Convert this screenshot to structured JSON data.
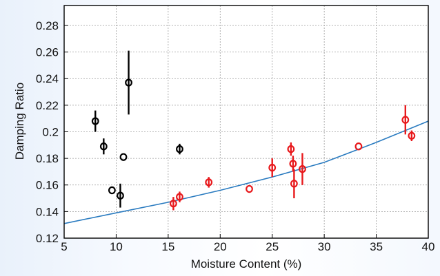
{
  "chart_data": {
    "type": "scatter",
    "title": "",
    "xlabel": "Moisture Content (%)",
    "ylabel": "Damping Ratio",
    "xlim": [
      5,
      40
    ],
    "ylim": [
      0.12,
      0.295
    ],
    "x_ticks": [
      5,
      10,
      15,
      20,
      25,
      30,
      35,
      40
    ],
    "x_tick_labels": [
      "5",
      "10",
      "15",
      "20",
      "25",
      "30",
      "35",
      "40"
    ],
    "y_ticks": [
      0.12,
      0.14,
      0.16,
      0.18,
      0.2,
      0.22,
      0.24,
      0.26,
      0.28
    ],
    "y_tick_labels": [
      "0.12",
      "0.14",
      "0.16",
      "0.18",
      "0.2",
      "0.22",
      "0.24",
      "0.26",
      "0.28"
    ],
    "grid": true,
    "legend": "none",
    "series": [
      {
        "color": "#000000",
        "marker": "open-circle",
        "points": [
          {
            "x": 8.0,
            "y": 0.208,
            "err": 0.008
          },
          {
            "x": 8.8,
            "y": 0.189,
            "err": 0.006
          },
          {
            "x": 9.6,
            "y": 0.156,
            "err": 0.0
          },
          {
            "x": 10.4,
            "y": 0.152,
            "err": 0.009
          },
          {
            "x": 10.7,
            "y": 0.181,
            "err": 0.0
          },
          {
            "x": 11.2,
            "y": 0.237,
            "err": 0.024
          },
          {
            "x": 16.1,
            "y": 0.187,
            "err": 0.004
          }
        ]
      },
      {
        "color": "#e8191c",
        "marker": "open-circle",
        "points": [
          {
            "x": 15.5,
            "y": 0.146,
            "err": 0.005
          },
          {
            "x": 16.1,
            "y": 0.151,
            "err": 0.004
          },
          {
            "x": 18.9,
            "y": 0.162,
            "err": 0.004
          },
          {
            "x": 22.8,
            "y": 0.157,
            "err": 0.0
          },
          {
            "x": 25.0,
            "y": 0.173,
            "err": 0.007
          },
          {
            "x": 26.8,
            "y": 0.187,
            "err": 0.005
          },
          {
            "x": 27.0,
            "y": 0.176,
            "err": 0.006
          },
          {
            "x": 27.1,
            "y": 0.161,
            "err": 0.011
          },
          {
            "x": 27.9,
            "y": 0.172,
            "err": 0.012
          },
          {
            "x": 33.3,
            "y": 0.189,
            "err": 0.0
          },
          {
            "x": 37.8,
            "y": 0.209,
            "err": 0.011
          },
          {
            "x": 38.4,
            "y": 0.197,
            "err": 0.004
          }
        ]
      }
    ],
    "trendline": {
      "color": "#2a7bc0",
      "x": [
        5,
        10,
        15,
        20,
        25,
        30,
        35,
        40
      ],
      "y": [
        0.131,
        0.139,
        0.147,
        0.156,
        0.166,
        0.177,
        0.192,
        0.208
      ]
    }
  }
}
